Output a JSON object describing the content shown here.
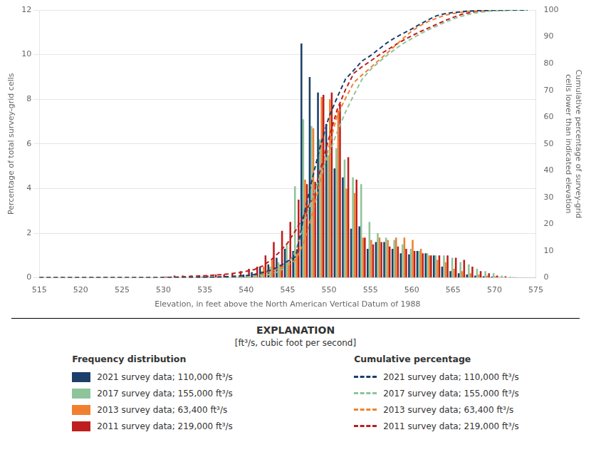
{
  "chart_data": {
    "type": "bar",
    "xlabel": "Elevation, in feet above the North American Vertical Datum of 1988",
    "ylabel": "Percentage of total survey-grid cells",
    "y2label": "Cumulative percentage of survey-grid cells lower than indicated elevation",
    "x": [
      515,
      516,
      517,
      518,
      519,
      520,
      521,
      522,
      523,
      524,
      525,
      526,
      527,
      528,
      529,
      530,
      531,
      532,
      533,
      534,
      535,
      536,
      537,
      538,
      539,
      540,
      541,
      542,
      543,
      544,
      545,
      546,
      547,
      548,
      549,
      550,
      551,
      552,
      553,
      554,
      555,
      556,
      557,
      558,
      559,
      560,
      561,
      562,
      563,
      564,
      565,
      566,
      567,
      568,
      569,
      570,
      571,
      572,
      573,
      574
    ],
    "xlim": [
      515,
      575
    ],
    "xticks": [
      515,
      520,
      525,
      530,
      535,
      540,
      545,
      550,
      555,
      560,
      565,
      570,
      575
    ],
    "ylim": [
      0,
      12
    ],
    "yticks": [
      0,
      2,
      4,
      6,
      8,
      10,
      12
    ],
    "y2lim": [
      0,
      100
    ],
    "y2ticks": [
      0,
      10,
      20,
      30,
      40,
      50,
      60,
      70,
      80,
      90,
      100
    ],
    "grid": "y",
    "legend": "bottom",
    "annotations": [
      "EXPLANATION",
      "[ft³/s, cubic foot per second]",
      "Frequency distribution",
      "Cumulative percentage"
    ],
    "series": [
      {
        "name": "2021 survey data; 110,000 ft³/s",
        "type": "bar",
        "axis": "y",
        "color": "#1b3f6a",
        "values": [
          0.0,
          0.0,
          0.0,
          0.0,
          0.0,
          0.0,
          0.0,
          0.0,
          0.0,
          0.0,
          0.0,
          0.0,
          0.02,
          0.0,
          0.0,
          0.02,
          0.0,
          0.0,
          0.02,
          0.02,
          0.04,
          0.05,
          0.06,
          0.08,
          0.1,
          0.15,
          0.25,
          0.5,
          0.6,
          0.9,
          1.3,
          1.2,
          10.5,
          9.0,
          8.3,
          6.9,
          4.9,
          4.5,
          2.2,
          2.3,
          1.3,
          1.6,
          1.6,
          1.3,
          1.1,
          1.05,
          1.2,
          1.1,
          1.0,
          0.5,
          0.3,
          0.2,
          0.15,
          0.1,
          0.07,
          0.05,
          0.03,
          0.02,
          0.01,
          0.0
        ]
      },
      {
        "name": "2017 survey data; 155,000 ft³/s",
        "type": "bar",
        "axis": "y",
        "color": "#8ec49a",
        "values": [
          0.0,
          0.0,
          0.0,
          0.0,
          0.0,
          0.0,
          0.0,
          0.0,
          0.0,
          0.0,
          0.0,
          0.0,
          0.0,
          0.0,
          0.0,
          0.0,
          0.0,
          0.0,
          0.0,
          0.0,
          0.0,
          0.0,
          0.02,
          0.02,
          0.03,
          0.05,
          0.1,
          0.3,
          0.5,
          0.7,
          1.5,
          4.1,
          7.1,
          6.8,
          6.2,
          5.5,
          5.8,
          5.3,
          4.5,
          4.2,
          2.5,
          2.0,
          1.8,
          1.7,
          1.5,
          1.3,
          1.2,
          1.1,
          1.0,
          1.0,
          0.9,
          0.7,
          0.6,
          0.4,
          0.3,
          0.2,
          0.1,
          0.05,
          0.02,
          0.01
        ]
      },
      {
        "name": "2013 survey data; 63,400 ft³/s",
        "type": "bar",
        "axis": "y",
        "color": "#f08030",
        "values": [
          0.0,
          0.0,
          0.0,
          0.0,
          0.0,
          0.0,
          0.0,
          0.0,
          0.0,
          0.0,
          0.0,
          0.0,
          0.0,
          0.0,
          0.0,
          0.0,
          0.0,
          0.0,
          0.0,
          0.0,
          0.0,
          0.0,
          0.0,
          0.02,
          0.05,
          0.1,
          0.2,
          0.5,
          0.8,
          0.6,
          0.7,
          1.3,
          4.4,
          6.7,
          8.1,
          8.0,
          7.5,
          4.0,
          3.8,
          1.8,
          1.7,
          1.8,
          1.7,
          1.8,
          1.8,
          1.7,
          1.3,
          1.0,
          0.8,
          0.7,
          0.4,
          0.3,
          0.2,
          0.15,
          0.1,
          0.07,
          0.03,
          0.01,
          0.0,
          0.0
        ]
      },
      {
        "name": "2011 survey data; 219,000 ft³/s",
        "type": "bar",
        "axis": "y",
        "color": "#be1e1e",
        "values": [
          0.0,
          0.0,
          0.0,
          0.0,
          0.0,
          0.0,
          0.0,
          0.0,
          0.0,
          0.0,
          0.0,
          0.0,
          0.0,
          0.0,
          0.0,
          0.05,
          0.1,
          0.1,
          0.1,
          0.1,
          0.1,
          0.15,
          0.15,
          0.2,
          0.3,
          0.4,
          0.5,
          1.0,
          1.6,
          2.1,
          2.5,
          3.5,
          4.2,
          4.3,
          8.2,
          8.3,
          7.8,
          5.4,
          4.4,
          1.8,
          1.5,
          1.6,
          1.4,
          1.4,
          1.3,
          1.2,
          1.1,
          1.0,
          1.0,
          1.0,
          0.9,
          0.8,
          0.5,
          0.3,
          0.2,
          0.1,
          0.07,
          0.03,
          0.01,
          0.0
        ]
      },
      {
        "name": "2021 survey data; 110,000 ft³/s",
        "type": "line",
        "axis": "y2",
        "line_style": "dashed",
        "color": "#1b3f6a",
        "values": [
          0,
          0,
          0,
          0,
          0,
          0,
          0,
          0,
          0,
          0,
          0,
          0,
          0.03,
          0.03,
          0.03,
          0.06,
          0.06,
          0.06,
          0.09,
          0.12,
          0.18,
          0.26,
          0.35,
          0.47,
          0.62,
          0.84,
          1.22,
          1.97,
          2.87,
          4.22,
          6.17,
          7.97,
          23.74,
          37.26,
          49.72,
          60.08,
          67.44,
          74.2,
          77.5,
          80.96,
          82.91,
          85.31,
          87.72,
          89.67,
          91.32,
          92.9,
          94.7,
          96.35,
          97.85,
          98.6,
          99.05,
          99.35,
          99.58,
          99.73,
          99.83,
          99.91,
          99.95,
          99.98,
          100,
          100
        ]
      },
      {
        "name": "2017 survey data; 155,000 ft³/s",
        "type": "line",
        "axis": "y2",
        "line_style": "dashed",
        "color": "#8ec49a",
        "values": [
          0,
          0,
          0,
          0,
          0,
          0,
          0,
          0,
          0,
          0,
          0,
          0,
          0,
          0,
          0,
          0,
          0,
          0,
          0,
          0,
          0,
          0,
          0.03,
          0.06,
          0.1,
          0.17,
          0.31,
          0.73,
          1.43,
          2.42,
          4.53,
          10.3,
          20.28,
          29.85,
          38.57,
          46.3,
          54.46,
          61.91,
          68.24,
          74.15,
          77.67,
          80.48,
          83.01,
          85.4,
          87.51,
          89.34,
          91.03,
          92.57,
          93.98,
          95.39,
          96.65,
          97.64,
          98.48,
          99.04,
          99.47,
          99.75,
          99.89,
          99.93,
          99.99,
          100
        ]
      },
      {
        "name": "2013 survey data; 63,400 ft³/s",
        "type": "line",
        "axis": "y2",
        "line_style": "dashed",
        "color": "#f08030",
        "values": [
          0,
          0,
          0,
          0,
          0,
          0,
          0,
          0,
          0,
          0,
          0,
          0,
          0,
          0,
          0,
          0,
          0,
          0,
          0,
          0,
          0,
          0,
          0,
          0.03,
          0.11,
          0.27,
          0.58,
          1.36,
          2.6,
          3.54,
          4.63,
          6.66,
          13.52,
          23.97,
          36.6,
          49.07,
          60.77,
          67.0,
          72.93,
          75.74,
          78.39,
          81.19,
          83.85,
          86.65,
          89.46,
          92.11,
          94.14,
          95.7,
          96.94,
          98.04,
          98.66,
          99.13,
          99.44,
          99.67,
          99.83,
          99.94,
          99.98,
          100,
          100,
          100
        ]
      },
      {
        "name": "2011 survey data; 219,000 ft³/s",
        "type": "line",
        "axis": "y2",
        "line_style": "dashed",
        "color": "#be1e1e",
        "values": [
          0,
          0,
          0,
          0,
          0,
          0,
          0,
          0,
          0,
          0,
          0,
          0,
          0,
          0,
          0,
          0.07,
          0.21,
          0.34,
          0.48,
          0.62,
          0.76,
          0.96,
          1.17,
          1.44,
          1.86,
          2.41,
          3.09,
          4.47,
          6.67,
          9.55,
          12.99,
          17.8,
          23.57,
          29.48,
          40.75,
          52.16,
          62.88,
          70.3,
          76.35,
          78.82,
          80.88,
          83.08,
          85.01,
          86.93,
          88.72,
          90.37,
          91.88,
          93.25,
          94.63,
          96.0,
          97.24,
          98.34,
          99.02,
          99.44,
          99.71,
          99.85,
          99.95,
          99.99,
          100,
          100
        ]
      }
    ]
  }
}
